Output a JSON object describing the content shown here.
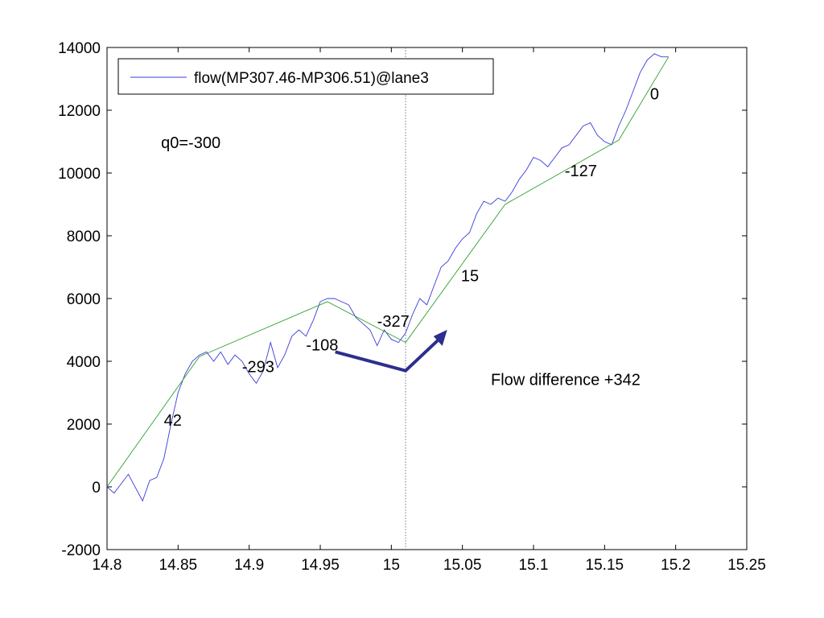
{
  "chart_data": {
    "type": "line",
    "title": "",
    "xlabel": "",
    "ylabel": "",
    "xlim": [
      14.8,
      15.25
    ],
    "ylim": [
      -2000,
      14000
    ],
    "xticks": [
      "14.8",
      "14.85",
      "14.9",
      "14.95",
      "15",
      "15.05",
      "15.1",
      "15.15",
      "15.2",
      "15.25"
    ],
    "yticks": [
      "-2000",
      "0",
      "2000",
      "4000",
      "6000",
      "8000",
      "10000",
      "12000",
      "14000"
    ],
    "grid": false,
    "legend_position": "top-left",
    "series": [
      {
        "name": "flow(MP307.46-MP306.51)@lane3",
        "color": "#3b3bd9",
        "x": [
          14.8,
          14.805,
          14.815,
          14.825,
          14.83,
          14.835,
          14.84,
          14.845,
          14.85,
          14.855,
          14.86,
          14.865,
          14.87,
          14.875,
          14.88,
          14.885,
          14.89,
          14.895,
          14.9,
          14.905,
          14.91,
          14.915,
          14.92,
          14.925,
          14.93,
          14.935,
          14.94,
          14.945,
          14.95,
          14.955,
          14.96,
          14.965,
          14.97,
          14.975,
          14.98,
          14.985,
          14.99,
          14.995,
          15.0,
          15.005,
          15.01,
          15.015,
          15.02,
          15.025,
          15.03,
          15.035,
          15.04,
          15.045,
          15.05,
          15.055,
          15.06,
          15.065,
          15.07,
          15.075,
          15.08,
          15.085,
          15.09,
          15.095,
          15.1,
          15.105,
          15.11,
          15.115,
          15.12,
          15.125,
          15.13,
          15.135,
          15.14,
          15.145,
          15.15,
          15.155,
          15.16,
          15.165,
          15.17,
          15.175,
          15.18,
          15.185,
          15.19,
          15.195
        ],
        "y": [
          0,
          -200,
          400,
          -450,
          200,
          300,
          900,
          2000,
          3000,
          3600,
          4000,
          4200,
          4300,
          4000,
          4300,
          3900,
          4200,
          4000,
          3600,
          3300,
          3700,
          4600,
          3800,
          4200,
          4800,
          5000,
          4800,
          5300,
          5900,
          6000,
          6000,
          5900,
          5800,
          5400,
          5200,
          5000,
          4500,
          5000,
          4700,
          4600,
          4900,
          5500,
          6000,
          5800,
          6400,
          7000,
          7200,
          7600,
          7900,
          8100,
          8700,
          9100,
          9000,
          9200,
          9100,
          9400,
          9800,
          10100,
          10500,
          10400,
          10200,
          10500,
          10800,
          10900,
          11200,
          11500,
          11600,
          11200,
          11000,
          10900,
          11500,
          12000,
          12600,
          13200,
          13600,
          13800,
          13700,
          13700
        ]
      },
      {
        "name": "",
        "color": "#2ca02c",
        "x": [
          14.8,
          14.865,
          14.955,
          15.01,
          15.08,
          15.16,
          15.195
        ],
        "y": [
          0,
          4150,
          5900,
          4600,
          9000,
          11050,
          13700
        ]
      }
    ],
    "annotations": [
      {
        "text": "q0=-300",
        "x": 14.838,
        "y": 10800
      },
      {
        "text": "42",
        "x": 14.84,
        "y": 1950
      },
      {
        "text": "-293",
        "x": 14.895,
        "y": 3650
      },
      {
        "text": "-108",
        "x": 14.94,
        "y": 4350
      },
      {
        "text": "-327",
        "x": 14.99,
        "y": 5100
      },
      {
        "text": "15",
        "x": 15.049,
        "y": 6550
      },
      {
        "text": "-127",
        "x": 15.122,
        "y": 9900
      },
      {
        "text": "0",
        "x": 15.182,
        "y": 12350
      },
      {
        "text": "Flow difference +342",
        "x": 15.07,
        "y": 3250
      }
    ],
    "reference_line_x": 15.01,
    "arrow_color": "#2e2e8f"
  }
}
